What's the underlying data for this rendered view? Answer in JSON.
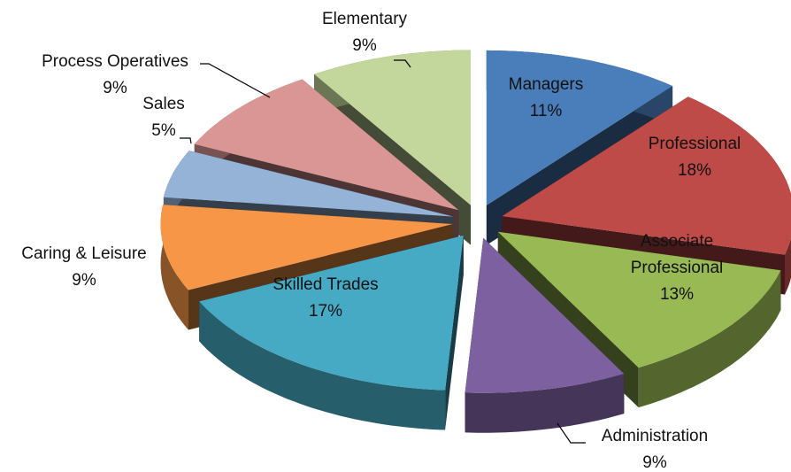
{
  "chart_data": {
    "type": "pie",
    "categories": [
      "Managers",
      "Professional",
      "Associate Professional",
      "Administration",
      "Skilled Trades",
      "Caring & Leisure",
      "Sales",
      "Process Operatives",
      "Elementary"
    ],
    "values": [
      11,
      18,
      13,
      9,
      17,
      9,
      5,
      9,
      9
    ],
    "value_labels": [
      "11%",
      "18%",
      "13%",
      "9%",
      "17%",
      "9%",
      "5%",
      "9%",
      "9%"
    ],
    "colors": [
      "#4a7ebb",
      "#be4b48",
      "#98b954",
      "#7d60a0",
      "#46aac5",
      "#f79646",
      "#95b3d7",
      "#d99694",
      "#c3d69b"
    ]
  }
}
